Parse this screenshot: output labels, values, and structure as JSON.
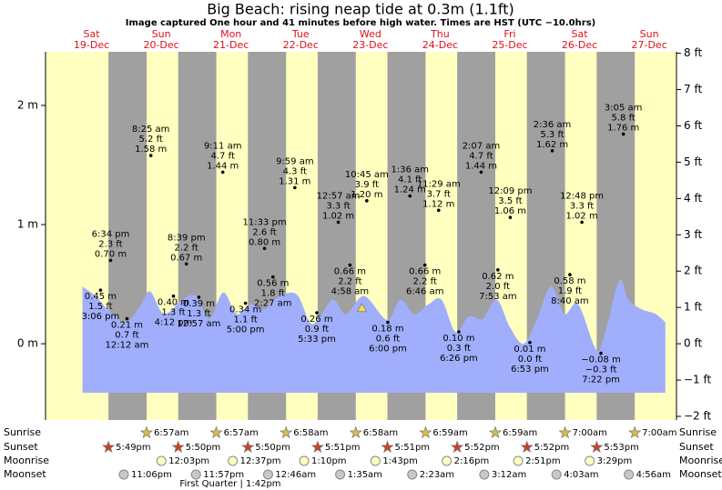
{
  "chart_data": {
    "type": "tide",
    "title": "Big Beach: rising  neap tide at 0.3m (1.1ft)",
    "subtitle": "Image captured One hour and 41 minutes before high water. Times are HST (UTC −10.0hrs)",
    "days": [
      {
        "weekday": "Sat",
        "date": "19-Dec"
      },
      {
        "weekday": "Sun",
        "date": "20-Dec"
      },
      {
        "weekday": "Mon",
        "date": "21-Dec"
      },
      {
        "weekday": "Tue",
        "date": "22-Dec"
      },
      {
        "weekday": "Wed",
        "date": "23-Dec"
      },
      {
        "weekday": "Thu",
        "date": "24-Dec"
      },
      {
        "weekday": "Fri",
        "date": "25-Dec"
      },
      {
        "weekday": "Sat",
        "date": "26-Dec"
      },
      {
        "weekday": "Sun",
        "date": "27-Dec"
      }
    ],
    "xlim": [
      -0.16,
      8.89
    ],
    "ylim": [
      -0.64,
      2.45
    ],
    "yticks": [
      {
        "value": 0,
        "label": "0 m"
      },
      {
        "value": 1,
        "label": "1 m"
      },
      {
        "value": 2,
        "label": "2 m"
      }
    ],
    "y2lim": [
      -2.1,
      8.04
    ],
    "y2ticks": [
      {
        "value": -2,
        "label": "−2 ft"
      },
      {
        "value": -1,
        "label": "−1 ft"
      },
      {
        "value": 0,
        "label": "0 ft"
      },
      {
        "value": 1,
        "label": "1 ft"
      },
      {
        "value": 2,
        "label": "2 ft"
      },
      {
        "value": 3,
        "label": "3 ft"
      },
      {
        "value": 4,
        "label": "4 ft"
      },
      {
        "value": 5,
        "label": "5 ft"
      },
      {
        "value": 6,
        "label": "6 ft"
      },
      {
        "value": 7,
        "label": "7 ft"
      },
      {
        "value": 8,
        "label": "8 ft"
      }
    ],
    "tide_curve": {
      "color": "#a0aefc",
      "x": [
        0.37,
        0.56,
        0.73,
        0.99,
        1.21,
        1.34,
        1.54,
        1.8,
        2.0,
        2.19,
        2.39,
        2.58,
        2.78,
        2.98,
        3.11,
        3.43,
        3.63,
        3.76,
        3.96,
        4.15,
        4.41,
        4.74,
        4.93,
        5.13,
        5.33,
        5.52,
        5.72,
        5.91,
        6.11,
        6.31,
        6.5,
        6.7,
        6.89,
        7.09,
        7.28,
        7.48,
        7.74,
        7.87,
        8.07,
        8.2,
        8.39,
        8.59,
        8.73
      ],
      "values": [
        0.48,
        0.4,
        0.29,
        0.18,
        0.33,
        0.44,
        0.25,
        0.37,
        0.4,
        0.21,
        0.43,
        0.25,
        0.33,
        0.29,
        0.37,
        0.42,
        0.18,
        0.21,
        0.37,
        0.25,
        0.4,
        0.2,
        0.37,
        0.25,
        0.33,
        0.37,
        0.1,
        0.23,
        0.21,
        0.37,
        0.14,
        0.0,
        0.21,
        0.48,
        0.25,
        0.33,
        -0.05,
        0.1,
        0.53,
        0.37,
        0.29,
        0.25,
        0.18
      ]
    },
    "now_marker": {
      "x": 4.378,
      "value": 0.3,
      "color": "#f2e24a"
    },
    "extremes": {
      "dates": [
        "19-Dec",
        "19-Dec",
        "20-Dec",
        "20-Dec",
        "20-Dec",
        "20-Dec",
        "21-Dec",
        "21-Dec",
        "21-Dec",
        "21-Dec",
        "22-Dec",
        "22-Dec",
        "22-Dec",
        "23-Dec",
        "23-Dec",
        "23-Dec",
        "23-Dec",
        "24-Dec",
        "24-Dec",
        "24-Dec",
        "24-Dec",
        "25-Dec",
        "25-Dec",
        "25-Dec",
        "25-Dec",
        "26-Dec",
        "26-Dec",
        "26-Dec",
        "26-Dec",
        "27-Dec"
      ],
      "times": [
        "3:06 pm",
        "6:34 pm",
        "12:12 am",
        "8:25 am",
        "4:12 pm",
        "8:39 pm",
        "12:57 am",
        "9:11 am",
        "5:00 pm",
        "11:33 pm",
        "2:27 am",
        "9:59 am",
        "5:33 pm",
        "12:57 am",
        "4:58 am",
        "10:45 am",
        "6:00 pm",
        "1:36 am",
        "6:46 am",
        "11:29 am",
        "6:26 pm",
        "2:07 am",
        "7:53 am",
        "12:09 pm",
        "6:53 pm",
        "2:36 am",
        "8:40 am",
        "12:48 pm",
        "7:22 pm",
        "3:05 am"
      ],
      "values": [
        0.45,
        0.7,
        0.21,
        1.58,
        0.4,
        0.67,
        0.39,
        1.44,
        0.34,
        0.8,
        0.56,
        1.31,
        0.26,
        1.02,
        0.66,
        1.2,
        0.18,
        1.24,
        0.66,
        1.12,
        0.1,
        1.44,
        0.62,
        1.06,
        0.01,
        1.62,
        0.58,
        1.02,
        -0.08,
        1.76
      ],
      "value_labels": [
        "0.45 m",
        "0.70 m",
        "0.21 m",
        "1.58 m",
        "0.40 m",
        "0.67 m",
        "0.39 m",
        "1.44 m",
        "0.34 m",
        "0.80 m",
        "0.56 m",
        "1.31 m",
        "0.26 m",
        "1.02 m",
        "0.66 m",
        "1.20 m",
        "0.18 m",
        "1.24 m",
        "0.66 m",
        "1.12 m",
        "0.10 m",
        "1.44 m",
        "0.62 m",
        "1.06 m",
        "0.01 m",
        "1.62 m",
        "0.58 m",
        "1.02 m",
        "−0.08 m",
        "1.76 m"
      ],
      "ft_labels": [
        "1.5 ft",
        "2.3 ft",
        "0.7 ft",
        "5.2 ft",
        "1.3 ft",
        "2.2 ft",
        "1.3 ft",
        "4.7 ft",
        "1.1 ft",
        "2.6 ft",
        "1.8 ft",
        "4.3 ft",
        "0.9 ft",
        "3.3 ft",
        "2.2 ft",
        "3.9 ft",
        "0.6 ft",
        "4.1 ft",
        "2.2 ft",
        "3.7 ft",
        "0.3 ft",
        "4.7 ft",
        "2.0 ft",
        "3.5 ft",
        "0.0 ft",
        "5.3 ft",
        "1.9 ft",
        "3.3 ft",
        "−0.3 ft",
        "5.8 ft"
      ]
    },
    "rows": [
      "Sunrise",
      "Sunset",
      "Moonrise",
      "Moonset"
    ],
    "sunrise": {
      "dates": [
        "20-Dec",
        "21-Dec",
        "22-Dec",
        "23-Dec",
        "24-Dec",
        "25-Dec",
        "26-Dec",
        "27-Dec"
      ],
      "times": [
        "6:57am",
        "6:57am",
        "6:58am",
        "6:58am",
        "6:59am",
        "6:59am",
        "7:00am",
        "7:00am"
      ]
    },
    "sunset": {
      "dates": [
        "19-Dec",
        "20-Dec",
        "21-Dec",
        "22-Dec",
        "23-Dec",
        "24-Dec",
        "25-Dec",
        "26-Dec"
      ],
      "times": [
        "5:49pm",
        "5:50pm",
        "5:50pm",
        "5:51pm",
        "5:51pm",
        "5:52pm",
        "5:52pm",
        "5:53pm"
      ]
    },
    "moonrise": {
      "dates": [
        "20-Dec",
        "21-Dec",
        "22-Dec",
        "23-Dec",
        "24-Dec",
        "25-Dec",
        "26-Dec"
      ],
      "times": [
        "12:03pm",
        "12:37pm",
        "1:10pm",
        "1:43pm",
        "2:16pm",
        "2:51pm",
        "3:29pm"
      ]
    },
    "moonset": {
      "dates": [
        "19-Dec",
        "20-Dec",
        "22-Dec",
        "23-Dec",
        "24-Dec",
        "25-Dec",
        "26-Dec",
        "27-Dec"
      ],
      "times": [
        "11:06pm",
        "11:57pm",
        "12:46am",
        "1:35am",
        "2:23am",
        "3:12am",
        "4:03am",
        "4:56am"
      ]
    },
    "moon_phase": "First Quarter | 1:42pm",
    "colors": {
      "day": "#ffffc0",
      "night": "#a0a0a0",
      "sunrise": "#d8c040",
      "sunset": "#d04020",
      "moonrise": "#ffffc0",
      "moonset": "#c8c8c8"
    }
  }
}
